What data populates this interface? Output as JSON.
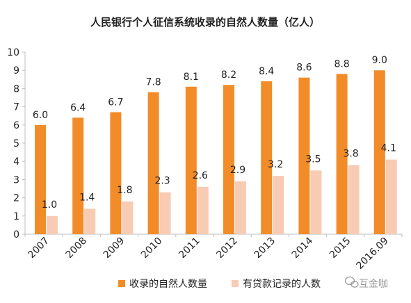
{
  "chart_data": {
    "type": "bar",
    "title": "人民银行个人征信系统收录的自然人数量（亿人）",
    "categories": [
      "2007",
      "2008",
      "2009",
      "2010",
      "2011",
      "2012",
      "2013",
      "2014",
      "2015",
      "2016.09"
    ],
    "series": [
      {
        "name": "收录的自然人数量",
        "values": [
          6.0,
          6.4,
          6.7,
          7.8,
          8.1,
          8.2,
          8.4,
          8.6,
          8.8,
          9.0
        ],
        "color": "#F28C28"
      },
      {
        "name": "有贷款记录的人数",
        "values": [
          1.0,
          1.4,
          1.8,
          2.3,
          2.6,
          2.9,
          3.2,
          3.5,
          3.8,
          4.1
        ],
        "color": "#F8CBB4"
      }
    ],
    "value_labels": [
      [
        "6.0",
        "6.4",
        "6.7",
        "7.8",
        "8.1",
        "8.2",
        "8.4",
        "8.6",
        "8.8",
        "9.0"
      ],
      [
        "1.0",
        "1.4",
        "1.8",
        "2.3",
        "2.6",
        "2.9",
        "3.2",
        "3.5",
        "3.8",
        "4.1"
      ]
    ],
    "ylim": [
      0,
      10
    ],
    "yticks": [
      "0",
      "1",
      "2",
      "3",
      "4",
      "5",
      "6",
      "7",
      "8",
      "9",
      "10"
    ],
    "grid": false,
    "legend_position": "bottom"
  },
  "watermark": {
    "text": "互金咖",
    "icon": "wechat-icon"
  },
  "colors": {
    "axis": "#BFBFBF",
    "text": "#222222",
    "watermark": "#9A9A9A"
  }
}
